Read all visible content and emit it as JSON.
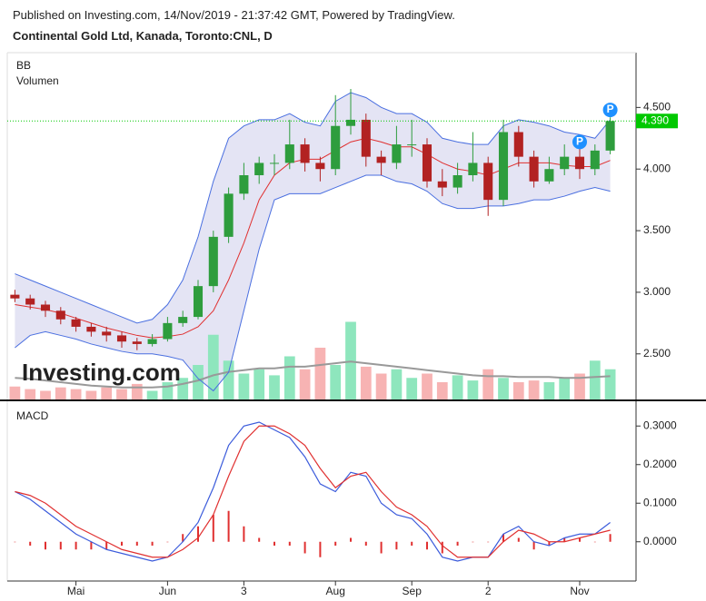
{
  "header": {
    "published": "Published on Investing.com, 14/Nov/2019 - 21:37:42 GMT, Powered by TradingView.",
    "title": "Continental Gold Ltd, Kanada, Toronto:CNL, D",
    "watermark": "Investing.com"
  },
  "chart_data": [
    {
      "type": "candlestick",
      "legend": [
        "BB",
        "Volumen"
      ],
      "categories": [
        null,
        null,
        null,
        null,
        "Mai",
        null,
        null,
        null,
        null,
        null,
        "Jun",
        null,
        null,
        null,
        null,
        "3",
        null,
        null,
        null,
        null,
        null,
        "Aug",
        null,
        null,
        null,
        null,
        "Sep",
        null,
        null,
        null,
        null,
        "2",
        null,
        null,
        null,
        null,
        null,
        "Nov",
        null,
        null
      ],
      "open": [
        2.98,
        2.95,
        2.9,
        2.85,
        2.78,
        2.72,
        2.68,
        2.65,
        2.6,
        2.58,
        2.62,
        2.75,
        2.8,
        3.05,
        3.45,
        3.8,
        3.95,
        4.05,
        4.05,
        4.2,
        4.05,
        4.0,
        4.35,
        4.4,
        4.1,
        4.05,
        4.2,
        4.2,
        3.9,
        3.85,
        3.95,
        4.05,
        3.75,
        4.3,
        4.1,
        3.9,
        4.0,
        4.1,
        4.0,
        4.15
      ],
      "high": [
        3.02,
        2.98,
        2.93,
        2.88,
        2.8,
        2.75,
        2.72,
        2.68,
        2.63,
        2.66,
        2.8,
        2.85,
        3.1,
        3.5,
        3.85,
        4.05,
        4.1,
        4.12,
        4.4,
        4.25,
        4.1,
        4.6,
        4.65,
        4.45,
        4.15,
        4.35,
        4.4,
        4.25,
        4.0,
        4.05,
        4.3,
        4.1,
        4.4,
        4.35,
        4.15,
        4.1,
        4.2,
        4.25,
        4.2,
        4.42
      ],
      "low": [
        2.92,
        2.86,
        2.8,
        2.74,
        2.68,
        2.64,
        2.6,
        2.55,
        2.53,
        2.56,
        2.6,
        2.72,
        2.78,
        3.0,
        3.4,
        3.75,
        3.88,
        3.95,
        4.0,
        3.98,
        3.9,
        3.95,
        4.28,
        4.02,
        3.95,
        4.0,
        4.1,
        3.85,
        3.78,
        3.8,
        3.9,
        3.62,
        3.7,
        4.02,
        3.85,
        3.88,
        3.95,
        3.92,
        3.95,
        4.12
      ],
      "close": [
        2.95,
        2.9,
        2.85,
        2.78,
        2.72,
        2.68,
        2.65,
        2.6,
        2.58,
        2.62,
        2.75,
        2.8,
        3.05,
        3.45,
        3.8,
        3.95,
        4.05,
        4.05,
        4.2,
        4.05,
        4.0,
        4.35,
        4.4,
        4.1,
        4.05,
        4.2,
        4.2,
        3.9,
        3.85,
        3.95,
        4.05,
        3.75,
        4.3,
        4.1,
        3.9,
        4.0,
        4.1,
        4.0,
        4.15,
        4.39
      ],
      "up_color": "#2e9d3d",
      "down_color": "#b22222",
      "bb_upper": [
        3.15,
        3.1,
        3.05,
        3.0,
        2.95,
        2.9,
        2.85,
        2.8,
        2.75,
        2.78,
        2.9,
        3.1,
        3.45,
        3.9,
        4.25,
        4.35,
        4.4,
        4.4,
        4.45,
        4.38,
        4.35,
        4.55,
        4.62,
        4.58,
        4.5,
        4.45,
        4.45,
        4.38,
        4.25,
        4.22,
        4.2,
        4.2,
        4.35,
        4.4,
        4.38,
        4.35,
        4.3,
        4.28,
        4.25,
        4.4
      ],
      "bb_mid": [
        2.9,
        2.88,
        2.86,
        2.83,
        2.79,
        2.75,
        2.71,
        2.68,
        2.65,
        2.63,
        2.64,
        2.66,
        2.72,
        2.85,
        3.1,
        3.4,
        3.75,
        3.95,
        4.05,
        4.08,
        4.08,
        4.15,
        4.22,
        4.25,
        4.22,
        4.18,
        4.18,
        4.12,
        4.05,
        4.0,
        3.98,
        3.95,
        4.0,
        4.05,
        4.05,
        4.05,
        4.03,
        4.02,
        4.02,
        4.07
      ],
      "bb_lower": [
        2.55,
        2.65,
        2.68,
        2.65,
        2.62,
        2.58,
        2.55,
        2.52,
        2.5,
        2.5,
        2.48,
        2.45,
        2.3,
        2.2,
        2.35,
        2.85,
        3.35,
        3.75,
        3.8,
        3.8,
        3.8,
        3.85,
        3.9,
        3.95,
        3.95,
        3.9,
        3.88,
        3.82,
        3.72,
        3.68,
        3.68,
        3.7,
        3.7,
        3.72,
        3.75,
        3.75,
        3.78,
        3.82,
        3.85,
        3.82
      ],
      "bb_color": "#4a6fe0",
      "bb_fill": "#e4e4f4",
      "bb_mid_color": "#e03030",
      "volume": [
        15,
        12,
        10,
        14,
        12,
        10,
        14,
        12,
        18,
        10,
        20,
        25,
        40,
        75,
        45,
        30,
        35,
        28,
        50,
        35,
        60,
        40,
        90,
        38,
        30,
        35,
        25,
        30,
        20,
        28,
        22,
        35,
        25,
        20,
        22,
        20,
        25,
        30,
        45,
        35
      ],
      "volume_ma": [
        25,
        24,
        22,
        20,
        18,
        16,
        15,
        14,
        14,
        14,
        15,
        18,
        22,
        28,
        32,
        34,
        36,
        36,
        38,
        38,
        40,
        42,
        44,
        42,
        40,
        38,
        36,
        34,
        32,
        30,
        28,
        27,
        27,
        26,
        26,
        26,
        25,
        25,
        26,
        27
      ],
      "vlim": [
        0,
        100
      ],
      "volume_up_color": "#8ee6bd",
      "volume_down_color": "#f7b3b3",
      "volume_ma_color": "#999999",
      "last_price": {
        "value": 4.39,
        "label": "4.390"
      },
      "last_price_color": "#00c800",
      "markers": [
        {
          "label": "P",
          "index": 37,
          "value": 4.22
        },
        {
          "label": "P",
          "index": 39,
          "value": 4.48
        }
      ],
      "ylim": [
        2.13,
        4.93
      ],
      "yticks": [
        {
          "value": 2.5,
          "label": "2.500"
        },
        {
          "value": 3.0,
          "label": "3.000"
        },
        {
          "value": 3.5,
          "label": "3.500"
        },
        {
          "value": 4.0,
          "label": "4.000"
        },
        {
          "value": 4.5,
          "label": "4.500"
        }
      ]
    },
    {
      "type": "line",
      "legend": [
        "MACD"
      ],
      "series": [
        {
          "color": "#3b5bdb",
          "values": [
            0.13,
            0.11,
            0.08,
            0.05,
            0.02,
            0.0,
            -0.02,
            -0.03,
            -0.04,
            -0.05,
            -0.04,
            0.0,
            0.05,
            0.14,
            0.25,
            0.3,
            0.31,
            0.29,
            0.27,
            0.22,
            0.15,
            0.13,
            0.18,
            0.17,
            0.1,
            0.07,
            0.06,
            0.02,
            -0.04,
            -0.05,
            -0.04,
            -0.04,
            0.02,
            0.04,
            0.0,
            -0.01,
            0.01,
            0.02,
            0.02,
            0.05
          ]
        },
        {
          "color": "#e03030",
          "values": [
            0.13,
            0.12,
            0.1,
            0.07,
            0.04,
            0.02,
            0.0,
            -0.02,
            -0.03,
            -0.04,
            -0.04,
            -0.02,
            0.01,
            0.07,
            0.17,
            0.26,
            0.3,
            0.3,
            0.28,
            0.25,
            0.19,
            0.14,
            0.17,
            0.18,
            0.13,
            0.09,
            0.07,
            0.04,
            -0.01,
            -0.04,
            -0.04,
            -0.04,
            0.0,
            0.03,
            0.02,
            0.0,
            0.0,
            0.01,
            0.02,
            0.03
          ]
        }
      ],
      "histogram": [
        0,
        -0.01,
        -0.02,
        -0.02,
        -0.02,
        -0.02,
        -0.02,
        -0.01,
        -0.01,
        -0.01,
        0,
        0.02,
        0.04,
        0.07,
        0.08,
        0.04,
        0.01,
        -0.01,
        -0.01,
        -0.03,
        -0.04,
        -0.01,
        0.01,
        -0.01,
        -0.03,
        -0.02,
        -0.01,
        -0.02,
        -0.03,
        -0.01,
        0,
        0,
        0.02,
        0.01,
        -0.02,
        -0.01,
        0.01,
        0.01,
        0,
        0.02
      ],
      "histogram_color": "#e03030",
      "ylim": [
        -0.09,
        0.35
      ],
      "yticks": [
        {
          "value": 0.0,
          "label": "0.0000"
        },
        {
          "value": 0.1,
          "label": "0.1000"
        },
        {
          "value": 0.2,
          "label": "0.2000"
        },
        {
          "value": 0.3,
          "label": "0.3000"
        }
      ]
    }
  ]
}
